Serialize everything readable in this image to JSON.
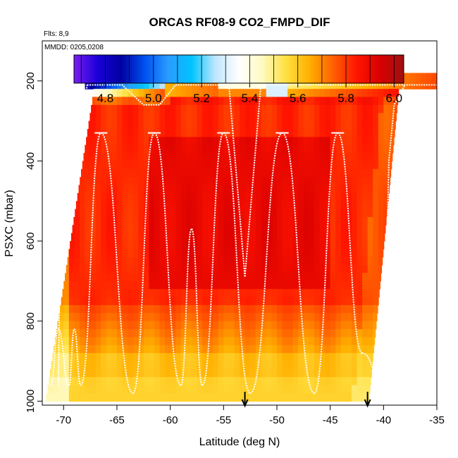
{
  "chart_data": {
    "type": "heatmap",
    "title": "ORCAS RF08-9 CO2_FMPD_DIF",
    "annotations": {
      "flights": "Flts: 8,9",
      "dates": "MMDD: 0205,0208"
    },
    "xlabel": "Latitude (deg N)",
    "ylabel": "PSXC (mbar)",
    "xlim": [
      -72,
      -35
    ],
    "ylim": [
      1010,
      100
    ],
    "x_ticks": [
      -70,
      -65,
      -60,
      -55,
      -50,
      -45,
      -40,
      -35
    ],
    "y_ticks": [
      200,
      400,
      600,
      800,
      1000
    ],
    "colorbar": {
      "range": [
        4.67,
        6.04
      ],
      "ticks": [
        4.8,
        5.0,
        5.2,
        5.4,
        5.6,
        5.8,
        6.0
      ],
      "colors": [
        "#7a1df0",
        "#1a00d8",
        "#0000a0",
        "#0050f0",
        "#2a9cff",
        "#00c4ff",
        "#bfe6ff",
        "#ffffff",
        "#fffac0",
        "#ffe040",
        "#ffb000",
        "#ff6000",
        "#ff1500",
        "#d80000",
        "#a01010"
      ]
    },
    "arrows_latitude": [
      -53,
      -41.5
    ],
    "flight_track_profiles": [
      {
        "lat": -71.2,
        "p": 960
      },
      {
        "lat": -70.5,
        "p": 820
      },
      {
        "lat": -69.5,
        "p": 960
      },
      {
        "lat": -69,
        "p": 820
      },
      {
        "lat": -68.4,
        "p": 960
      },
      {
        "lat": -66.5,
        "p": 330
      },
      {
        "lat": -63.5,
        "p": 980
      },
      {
        "lat": -61.5,
        "p": 330
      },
      {
        "lat": -59,
        "p": 960
      },
      {
        "lat": -58,
        "p": 570
      },
      {
        "lat": -57,
        "p": 960
      },
      {
        "lat": -55,
        "p": 330
      },
      {
        "lat": -52.5,
        "p": 980
      },
      {
        "lat": -49.5,
        "p": 330
      },
      {
        "lat": -46.5,
        "p": 980
      },
      {
        "lat": -44.3,
        "p": 330
      },
      {
        "lat": -42,
        "p": 880
      },
      {
        "lat": -40,
        "p": 960
      }
    ],
    "field_summary": {
      "background_value": 5.82,
      "core_value": 5.9,
      "boundary_layer_value": 5.62,
      "surface_value": 5.58,
      "upper_low_value": 4.82,
      "upper_mid_value": 5.4
    }
  }
}
